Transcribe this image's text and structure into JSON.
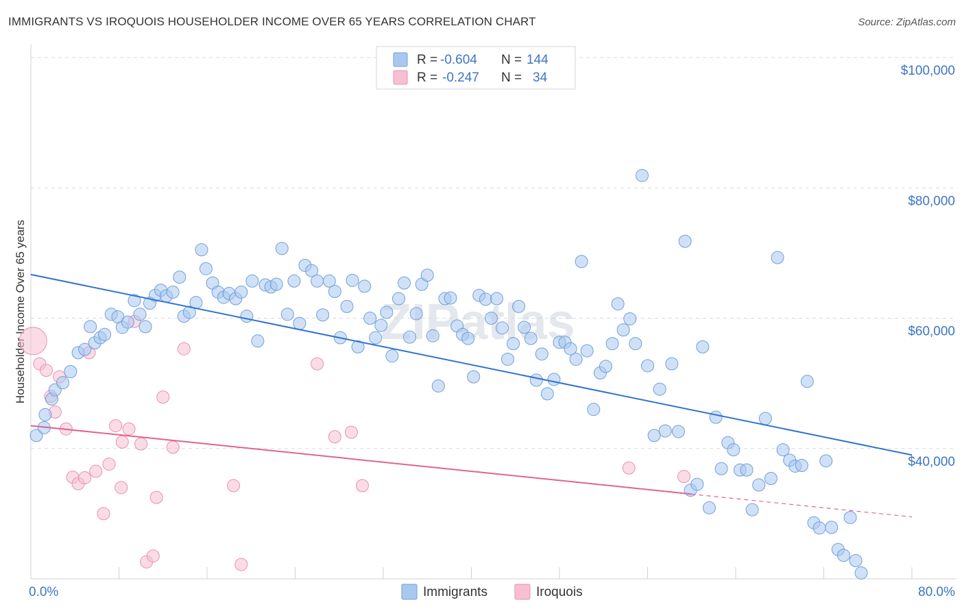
{
  "header": {
    "title": "IMMIGRANTS VS IROQUOIS HOUSEHOLDER INCOME OVER 65 YEARS CORRELATION CHART",
    "source": "Source: ZipAtlas.com"
  },
  "watermark": "ZIPatlas",
  "legend": {
    "row1": {
      "r_label": "R = ",
      "r_value": "-0.604",
      "n_label": "N = ",
      "n_value": "144"
    },
    "row2": {
      "r_label": "R = ",
      "r_value": "-0.247",
      "n_label": "N = ",
      "n_value": "34"
    }
  },
  "colors": {
    "immigrants_fill": "#a9c8f0",
    "immigrants_stroke": "#6e9fd9",
    "immigrants_line": "#2f72d0",
    "iroquois_fill": "#f6c0d2",
    "iroquois_stroke": "#e98fae",
    "iroquois_line": "#e0638f",
    "tick_text": "#3b75c4",
    "grid": "#d9d9d9"
  },
  "chart_data": {
    "type": "scatter",
    "title": "IMMIGRANTS VS IROQUOIS HOUSEHOLDER INCOME OVER 65 YEARS CORRELATION CHART",
    "xlabel": "",
    "ylabel": "Householder Income Over 65 years",
    "xlim": [
      0,
      80
    ],
    "ylim": [
      20000,
      102000
    ],
    "x_tick_labels": {
      "left": "0.0%",
      "right": "80.0%"
    },
    "y_ticks": [
      {
        "value": 40000,
        "label": "$40,000"
      },
      {
        "value": 60000,
        "label": "$60,000"
      },
      {
        "value": 80000,
        "label": "$80,000"
      },
      {
        "value": 100000,
        "label": "$100,000"
      }
    ],
    "series": [
      {
        "name": "Immigrants",
        "r": -0.604,
        "n": 144,
        "trend": {
          "x0": 0,
          "y0": 66700,
          "x1": 80,
          "y1": 39000
        },
        "points": [
          [
            0.5,
            42000
          ],
          [
            1.2,
            43200
          ],
          [
            1.3,
            45200
          ],
          [
            1.9,
            47600
          ],
          [
            2.2,
            49000
          ],
          [
            2.9,
            50100
          ],
          [
            3.6,
            51800
          ],
          [
            4.3,
            54700
          ],
          [
            4.9,
            55200
          ],
          [
            5.4,
            58700
          ],
          [
            5.8,
            56200
          ],
          [
            6.3,
            57000
          ],
          [
            6.7,
            57500
          ],
          [
            7.3,
            60600
          ],
          [
            7.9,
            60200
          ],
          [
            8.3,
            58600
          ],
          [
            8.8,
            59400
          ],
          [
            9.4,
            62700
          ],
          [
            9.9,
            60600
          ],
          [
            10.4,
            58700
          ],
          [
            10.8,
            62300
          ],
          [
            11.3,
            63500
          ],
          [
            11.8,
            64300
          ],
          [
            12.3,
            63400
          ],
          [
            12.9,
            64000
          ],
          [
            13.5,
            66300
          ],
          [
            13.9,
            60300
          ],
          [
            14.4,
            60900
          ],
          [
            15.0,
            62400
          ],
          [
            15.5,
            70500
          ],
          [
            15.9,
            67600
          ],
          [
            16.5,
            65400
          ],
          [
            17.0,
            64000
          ],
          [
            17.5,
            63200
          ],
          [
            18.0,
            63800
          ],
          [
            18.6,
            63000
          ],
          [
            19.1,
            64000
          ],
          [
            19.6,
            60300
          ],
          [
            20.1,
            65700
          ],
          [
            20.6,
            56500
          ],
          [
            21.3,
            65100
          ],
          [
            21.8,
            64800
          ],
          [
            22.3,
            65200
          ],
          [
            22.8,
            70700
          ],
          [
            23.3,
            60600
          ],
          [
            23.9,
            65700
          ],
          [
            24.4,
            59200
          ],
          [
            24.9,
            68100
          ],
          [
            25.5,
            67300
          ],
          [
            26.0,
            65700
          ],
          [
            26.5,
            60500
          ],
          [
            27.1,
            65700
          ],
          [
            27.6,
            64100
          ],
          [
            28.1,
            57000
          ],
          [
            28.7,
            61800
          ],
          [
            29.2,
            65800
          ],
          [
            29.7,
            55600
          ],
          [
            30.3,
            64900
          ],
          [
            30.8,
            60000
          ],
          [
            31.3,
            57000
          ],
          [
            31.8,
            58900
          ],
          [
            32.3,
            60900
          ],
          [
            32.8,
            54200
          ],
          [
            33.4,
            63000
          ],
          [
            33.9,
            65400
          ],
          [
            34.4,
            57100
          ],
          [
            35.0,
            60700
          ],
          [
            35.5,
            65200
          ],
          [
            36.0,
            66600
          ],
          [
            36.5,
            57300
          ],
          [
            37.0,
            49600
          ],
          [
            37.6,
            63000
          ],
          [
            38.1,
            63100
          ],
          [
            38.7,
            58800
          ],
          [
            39.2,
            57500
          ],
          [
            39.7,
            56900
          ],
          [
            40.2,
            51000
          ],
          [
            40.7,
            63500
          ],
          [
            41.3,
            62900
          ],
          [
            41.8,
            60000
          ],
          [
            42.3,
            63000
          ],
          [
            42.8,
            58500
          ],
          [
            43.3,
            53700
          ],
          [
            43.8,
            56100
          ],
          [
            44.3,
            61800
          ],
          [
            44.8,
            58600
          ],
          [
            45.4,
            56900
          ],
          [
            45.9,
            50500
          ],
          [
            46.4,
            54500
          ],
          [
            46.9,
            48400
          ],
          [
            47.5,
            50600
          ],
          [
            48.0,
            56300
          ],
          [
            48.5,
            56300
          ],
          [
            49.0,
            55300
          ],
          [
            49.5,
            53700
          ],
          [
            50.0,
            68700
          ],
          [
            50.5,
            55000
          ],
          [
            51.1,
            46000
          ],
          [
            51.7,
            51600
          ],
          [
            52.2,
            52600
          ],
          [
            52.8,
            56100
          ],
          [
            53.3,
            62200
          ],
          [
            53.8,
            58200
          ],
          [
            54.4,
            59900
          ],
          [
            54.9,
            56100
          ],
          [
            55.5,
            81900
          ],
          [
            56.0,
            52700
          ],
          [
            56.6,
            42000
          ],
          [
            57.1,
            49100
          ],
          [
            57.6,
            42700
          ],
          [
            58.2,
            53000
          ],
          [
            58.8,
            42600
          ],
          [
            59.4,
            71800
          ],
          [
            59.9,
            33600
          ],
          [
            60.5,
            34500
          ],
          [
            61.0,
            55600
          ],
          [
            61.6,
            30900
          ],
          [
            62.2,
            44800
          ],
          [
            62.7,
            36900
          ],
          [
            63.3,
            40900
          ],
          [
            63.8,
            39800
          ],
          [
            64.4,
            36700
          ],
          [
            65.0,
            36700
          ],
          [
            65.5,
            30600
          ],
          [
            66.1,
            34400
          ],
          [
            66.7,
            44600
          ],
          [
            67.2,
            35400
          ],
          [
            67.8,
            69300
          ],
          [
            68.3,
            39800
          ],
          [
            68.9,
            38200
          ],
          [
            69.4,
            37300
          ],
          [
            70.0,
            37400
          ],
          [
            70.5,
            50300
          ],
          [
            71.1,
            28600
          ],
          [
            71.6,
            27800
          ],
          [
            72.2,
            38100
          ],
          [
            72.7,
            27900
          ],
          [
            73.3,
            24500
          ],
          [
            73.8,
            23600
          ],
          [
            74.4,
            29400
          ],
          [
            74.9,
            22800
          ],
          [
            75.4,
            20900
          ]
        ]
      },
      {
        "name": "Iroquois",
        "r": -0.247,
        "n": 34,
        "trend": {
          "x0": 0,
          "y0": 43500,
          "x1": 60,
          "y1": 33000,
          "dash_x1": 80,
          "dash_y1": 29500
        },
        "points": [
          [
            0.2,
            56500
          ],
          [
            0.8,
            53000
          ],
          [
            1.4,
            52000
          ],
          [
            1.8,
            48000
          ],
          [
            2.2,
            45600
          ],
          [
            2.6,
            51000
          ],
          [
            3.2,
            43000
          ],
          [
            3.8,
            35600
          ],
          [
            4.3,
            34600
          ],
          [
            4.9,
            35500
          ],
          [
            5.3,
            54700
          ],
          [
            5.9,
            36500
          ],
          [
            6.6,
            30000
          ],
          [
            7.1,
            37600
          ],
          [
            7.7,
            43500
          ],
          [
            8.2,
            34000
          ],
          [
            8.3,
            41000
          ],
          [
            8.9,
            43000
          ],
          [
            9.4,
            59500
          ],
          [
            10.0,
            40700
          ],
          [
            10.5,
            22600
          ],
          [
            11.1,
            23500
          ],
          [
            11.4,
            32500
          ],
          [
            12.0,
            47900
          ],
          [
            12.9,
            40200
          ],
          [
            13.9,
            55300
          ],
          [
            18.4,
            34300
          ],
          [
            19.1,
            22200
          ],
          [
            26.0,
            53000
          ],
          [
            27.6,
            41800
          ],
          [
            29.1,
            42500
          ],
          [
            30.1,
            34300
          ],
          [
            54.3,
            37000
          ],
          [
            59.3,
            35700
          ]
        ]
      }
    ]
  },
  "bottom_legend": {
    "item1": "Immigrants",
    "item2": "Iroquois"
  }
}
